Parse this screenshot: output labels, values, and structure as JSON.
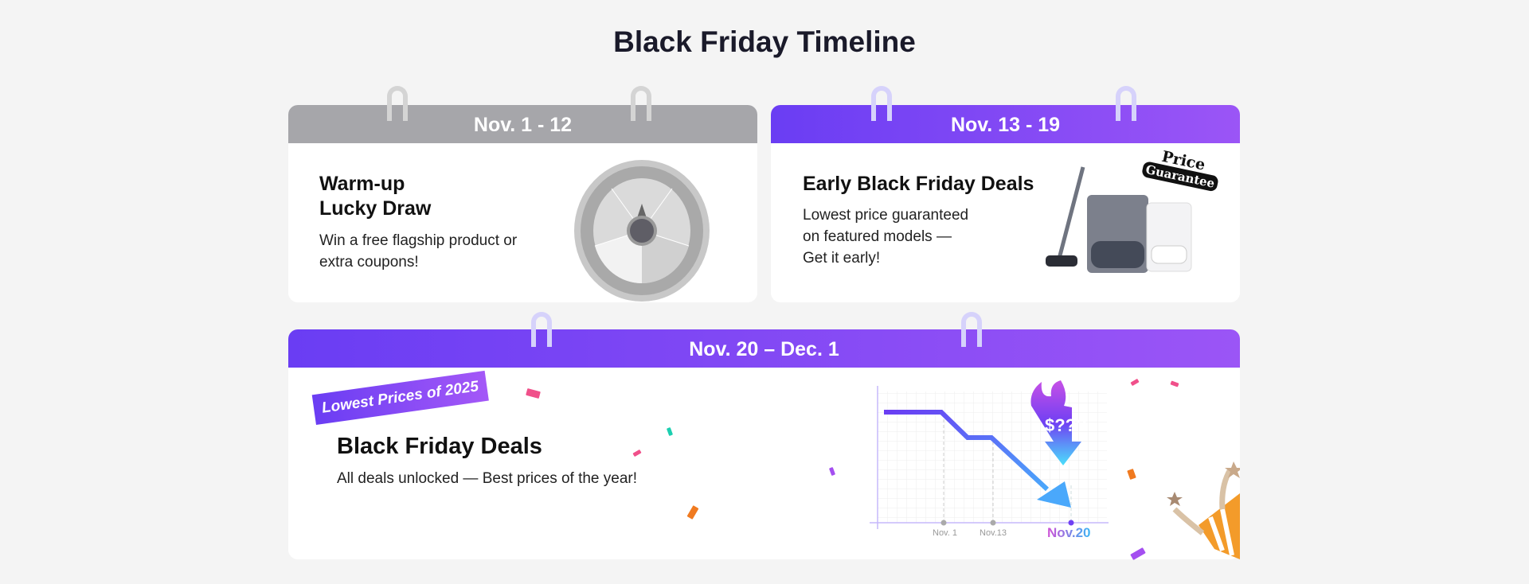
{
  "page_title": "Black Friday Timeline",
  "cards": [
    {
      "date": "Nov. 1 - 12",
      "heading_line1": "Warm-up",
      "heading_line2": "Lucky Draw",
      "description_line1": "Win a free flagship product or",
      "description_line2": "extra coupons!",
      "theme": "#a6a6aa"
    },
    {
      "date": "Nov. 13 - 19",
      "heading": "Early Black Friday Deals",
      "description_line1": "Lowest price guaranteed",
      "description_line2": "on featured models —",
      "description_line3": "Get it early!",
      "badge_line1": "Price",
      "badge_line2": "Guarantee",
      "theme": "#7443f5"
    },
    {
      "date": "Nov. 20 – Dec. 1",
      "ribbon": "Lowest Prices of 2025",
      "heading": "Black Friday Deals",
      "description": "All deals unlocked — Best prices of the year!",
      "theme": "#7443f5"
    }
  ],
  "price_chart": {
    "tick_labels": [
      "Nov. 1",
      "Nov.13",
      "Nov.20"
    ],
    "price_label": "$???",
    "highlight_color": "#a24ff0"
  }
}
